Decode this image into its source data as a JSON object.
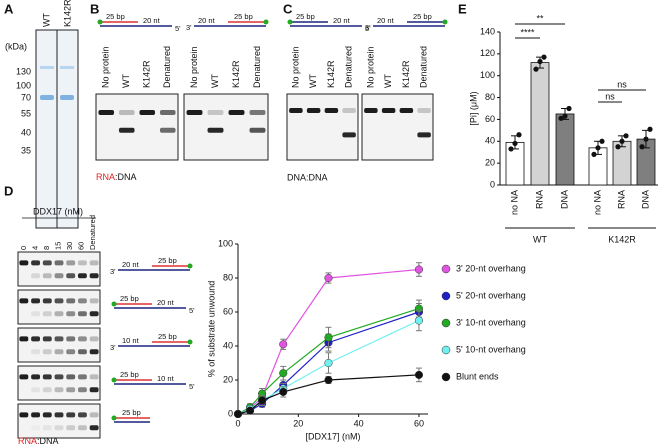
{
  "panels": {
    "A": {
      "label": "A",
      "unit": "(kDa)",
      "ladder": [
        "130",
        "100",
        "70",
        "55",
        "40",
        "35"
      ],
      "lanes": [
        "WT",
        "K142R"
      ]
    },
    "B": {
      "label": "B",
      "lanes": [
        "No protein",
        "WT",
        "K142R",
        "Denatured",
        "No protein",
        "WT",
        "K142R",
        "Denatured"
      ],
      "substrates": [
        [
          "25 bp",
          "20 nt",
          "5'"
        ],
        [
          "3'",
          "20 nt",
          "25 bp"
        ]
      ],
      "caption": [
        "RNA",
        ":DNA"
      ]
    },
    "C": {
      "label": "C",
      "lanes": [
        "No protein",
        "WT",
        "K142R",
        "Denatured",
        "No protein",
        "WT",
        "K142R",
        "Denatured"
      ],
      "substrates": [
        [
          "25 bp",
          "20 nt",
          "5'"
        ],
        [
          "3'",
          "20 nt",
          "25 bp"
        ]
      ],
      "caption": "DNA:DNA"
    },
    "D": {
      "label": "D",
      "title": "DDX17 (nM)",
      "lanes": [
        "0",
        "4",
        "8",
        "15",
        "30",
        "60",
        "Denatured"
      ],
      "substrates": [
        [
          "3'",
          "20 nt",
          "25 bp"
        ],
        [
          "25 bp",
          "20 nt",
          "5'"
        ],
        [
          "3'",
          "10 nt",
          "25 bp"
        ],
        [
          "25 bp",
          "10 nt",
          "5'"
        ],
        [
          "25 bp"
        ]
      ],
      "caption": [
        "RNA",
        ":DNA"
      ]
    },
    "E": {
      "label": "E"
    }
  },
  "chart_data": [
    {
      "type": "bar",
      "ylabel": "[Pi] (μM)",
      "categories": [
        "no NA",
        "RNA",
        "DNA",
        "no NA",
        "RNA",
        "DNA"
      ],
      "groups": [
        "WT",
        "K142R"
      ],
      "values": [
        39,
        112,
        65,
        34,
        40,
        42
      ],
      "errors": [
        6,
        5,
        5,
        6,
        5,
        8
      ],
      "points": [
        [
          33,
          38,
          46
        ],
        [
          106,
          113,
          117
        ],
        [
          61,
          63,
          70
        ],
        [
          28,
          34,
          40
        ],
        [
          35,
          40,
          45
        ],
        [
          35,
          42,
          51
        ]
      ],
      "colors": [
        "#ffffff",
        "#d3d3d3",
        "#7f7f7f",
        "#ffffff",
        "#d3d3d3",
        "#7f7f7f"
      ],
      "ylim": [
        0,
        140
      ],
      "yticks": [
        0,
        20,
        40,
        60,
        80,
        100,
        120,
        140
      ],
      "annotations": [
        {
          "text": "****",
          "between": [
            0,
            1
          ]
        },
        {
          "text": "**",
          "between": [
            0,
            2
          ]
        },
        {
          "text": "ns",
          "between": [
            3,
            4
          ]
        },
        {
          "text": "ns",
          "between": [
            3,
            5
          ]
        }
      ]
    },
    {
      "type": "line",
      "xlabel": "[DDX17] (nM)",
      "ylabel": "% of substrate unwound",
      "x": [
        0,
        4,
        8,
        15,
        30,
        60
      ],
      "xlim": [
        0,
        63
      ],
      "xticks": [
        0,
        20,
        40,
        60
      ],
      "ylim": [
        0,
        100
      ],
      "yticks": [
        0,
        20,
        40,
        60,
        80,
        100
      ],
      "series": [
        {
          "name": "3' 20-nt overhang",
          "color": "#e055e0",
          "values": [
            0,
            3,
            10,
            41,
            80,
            85
          ],
          "errors": [
            1,
            1,
            2,
            3,
            3,
            4
          ]
        },
        {
          "name": "5' 20-nt overhang",
          "color": "#2020c8",
          "values": [
            0,
            2,
            6,
            17,
            42,
            60
          ],
          "errors": [
            1,
            1,
            2,
            3,
            5,
            5
          ]
        },
        {
          "name": "3' 10-nt overhang",
          "color": "#22aa22",
          "values": [
            0,
            4,
            12,
            24,
            45,
            62
          ],
          "errors": [
            1,
            2,
            3,
            4,
            6,
            5
          ]
        },
        {
          "name": "5' 10-nt overhang",
          "color": "#70f0f0",
          "values": [
            0,
            3,
            8,
            15,
            30,
            55
          ],
          "errors": [
            1,
            1,
            2,
            3,
            6,
            6
          ]
        },
        {
          "name": "Blunt ends",
          "color": "#111111",
          "values": [
            0,
            2,
            8,
            13,
            20,
            23
          ],
          "errors": [
            1,
            1,
            3,
            3,
            2,
            4
          ]
        }
      ]
    }
  ]
}
